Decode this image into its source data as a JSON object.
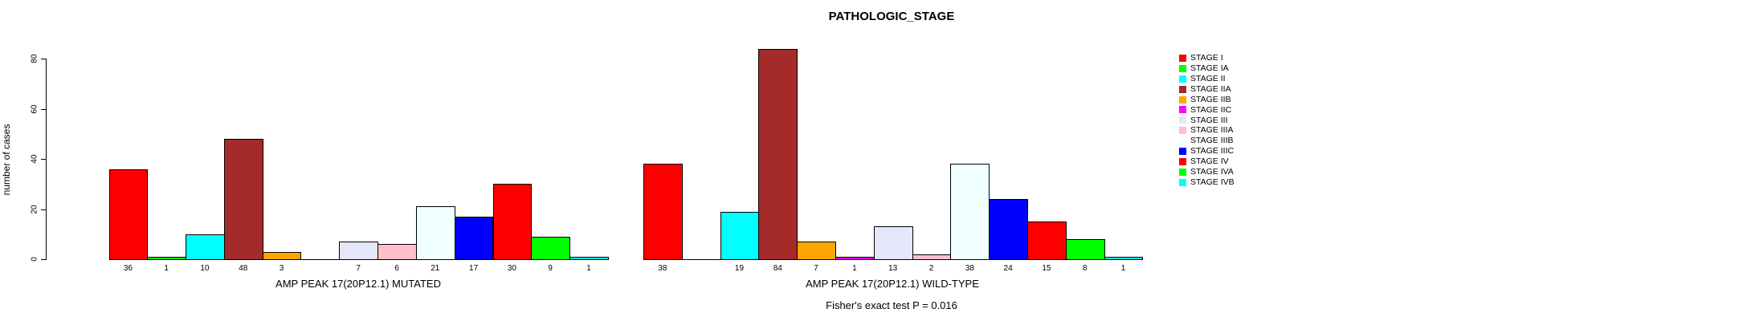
{
  "chart_data": {
    "type": "bar",
    "title": "PATHOLOGIC_STAGE",
    "ylabel": "number of cases",
    "xlabel": "",
    "ylim": [
      0,
      80
    ],
    "yticks": [
      0,
      20,
      40,
      60,
      80
    ],
    "grid": false,
    "legend_position": "right",
    "categories": [
      "STAGE I",
      "STAGE IA",
      "STAGE II",
      "STAGE IIA",
      "STAGE IIB",
      "STAGE IIC",
      "STAGE III",
      "STAGE IIIA",
      "STAGE IIIB",
      "STAGE IIIC",
      "STAGE IV",
      "STAGE IVA",
      "STAGE IVB"
    ],
    "colors": [
      "#FF0000",
      "#00FF00",
      "#00FFFF",
      "#A52A2A",
      "#FFA500",
      "#FF00FF",
      "#E6E6FA",
      "#FFC0CB",
      "#F0FFFF",
      "#0000FF",
      "#FF0000",
      "#00FF00",
      "#00FFFF"
    ],
    "series": [
      {
        "name": "AMP PEAK 17(20P12.1) MUTATED",
        "values": [
          36,
          1,
          10,
          48,
          3,
          0,
          7,
          6,
          21,
          17,
          30,
          9,
          1
        ]
      },
      {
        "name": "AMP PEAK 17(20P12.1) WILD-TYPE",
        "values": [
          38,
          0,
          19,
          84,
          7,
          1,
          13,
          2,
          38,
          24,
          15,
          8,
          1
        ]
      }
    ],
    "bar_value_labels_shown": true,
    "zero_value_bars_hidden": true,
    "annotation": "Fisher's exact test P = 0.016"
  }
}
